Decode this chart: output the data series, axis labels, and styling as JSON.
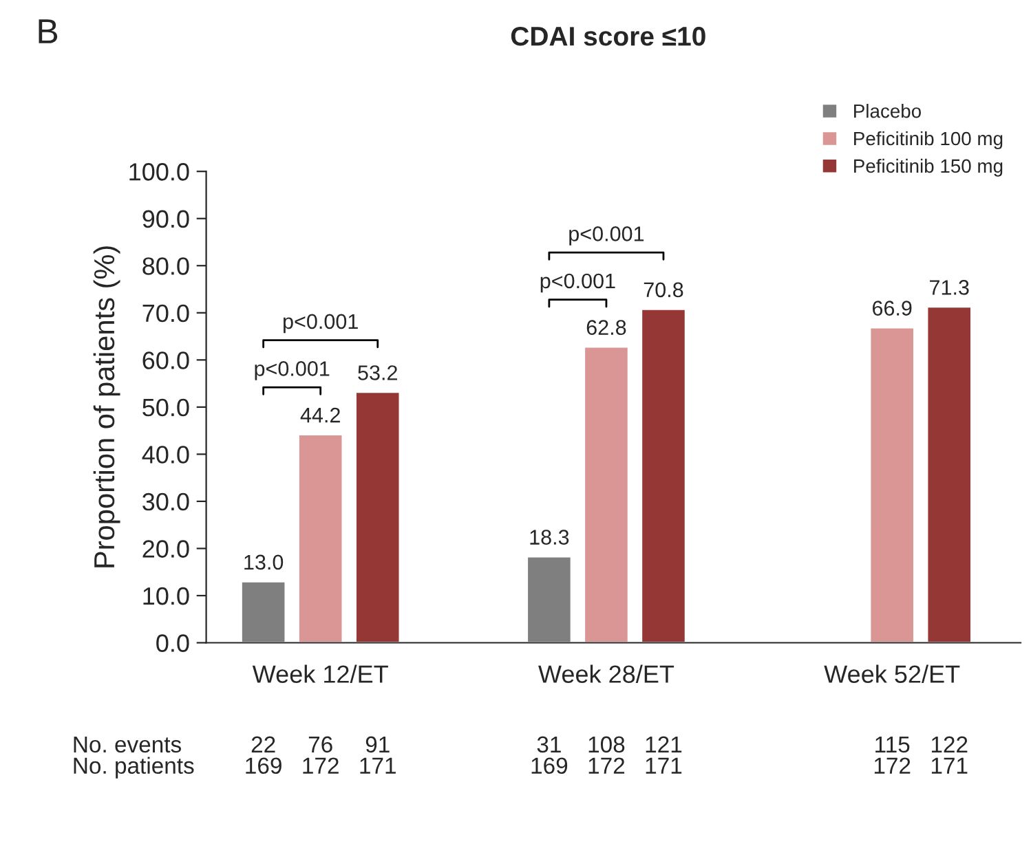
{
  "chart_data": {
    "type": "bar",
    "title": "CDAI score ≤10",
    "ylabel": "Proportion of patients (%)",
    "categories": [
      "Week 12/ET",
      "Week 28/ET",
      "Week 52/ET"
    ],
    "series": [
      {
        "name": "Placebo",
        "color": "#7f7f7f",
        "values": [
          13.0,
          18.3,
          null
        ],
        "value_labels": [
          "13.0",
          "18.3",
          null
        ]
      },
      {
        "name": "Peficitinib 100 mg",
        "color": "#d99694",
        "values": [
          44.2,
          62.8,
          66.9
        ],
        "value_labels": [
          "44.2",
          "62.8",
          "66.9"
        ]
      },
      {
        "name": "Peficitinib 150 mg",
        "color": "#953735",
        "values": [
          53.2,
          70.8,
          71.3
        ],
        "value_labels": [
          "53.2",
          "70.8",
          "71.3"
        ]
      }
    ],
    "ylim": [
      0,
      100
    ],
    "yticks": [
      {
        "value": 0,
        "label": "0.0"
      },
      {
        "value": 10,
        "label": "10.0"
      },
      {
        "value": 20,
        "label": "20.0"
      },
      {
        "value": 30,
        "label": "30.0"
      },
      {
        "value": 40,
        "label": "40.0"
      },
      {
        "value": 50,
        "label": "50.0"
      },
      {
        "value": 60,
        "label": "60.0"
      },
      {
        "value": 70,
        "label": "70.0"
      },
      {
        "value": 80,
        "label": "80.0"
      },
      {
        "value": 90,
        "label": "90.0"
      },
      {
        "value": 100,
        "label": "100.0"
      }
    ],
    "legend": "top right",
    "grid": false,
    "annotations": [
      "B",
      "p<0.001",
      "p<0.001",
      "p<0.001",
      "p<0.001",
      "No. events",
      "22",
      "76",
      "91",
      "31",
      "108",
      "121",
      "115",
      "122",
      "No. patients",
      "169",
      "172",
      "171",
      "169",
      "172",
      "171",
      "172",
      "171"
    ]
  }
}
